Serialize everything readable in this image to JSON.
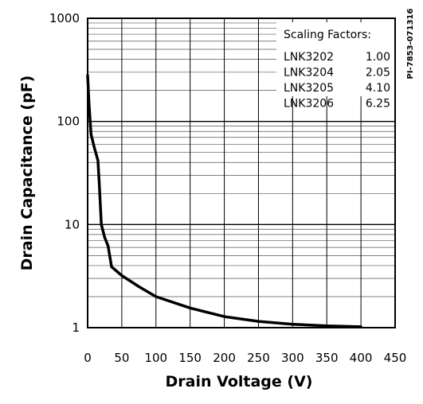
{
  "chart_data": {
    "type": "line",
    "title": "",
    "xlabel": "Drain Voltage (V)",
    "ylabel": "Drain Capacitance (pF)",
    "xlim": [
      0,
      450
    ],
    "ylim": [
      1,
      1000
    ],
    "yscale": "log",
    "x_ticks": [
      "0",
      "50",
      "100",
      "150",
      "200",
      "250",
      "300",
      "350",
      "400",
      "450"
    ],
    "y_ticks": [
      "1",
      "10",
      "100",
      "1000"
    ],
    "grid": true,
    "figure_id": "PI-7853-071316",
    "scaling_factors": {
      "title": "Scaling Factors:",
      "rows": [
        {
          "part": "LNK3202",
          "factor": "1.00"
        },
        {
          "part": "LNK3204",
          "factor": "2.05"
        },
        {
          "part": "LNK3205",
          "factor": "4.10"
        },
        {
          "part": "LNK3206",
          "factor": "6.25"
        }
      ]
    },
    "series": [
      {
        "color": "#000000",
        "points": [
          [
            0,
            280
          ],
          [
            2,
            150
          ],
          [
            5,
            75
          ],
          [
            10,
            55
          ],
          [
            15,
            42
          ],
          [
            17,
            25
          ],
          [
            20,
            10
          ],
          [
            25,
            7.5
          ],
          [
            30,
            6.2
          ],
          [
            35,
            3.9
          ],
          [
            50,
            3.2
          ],
          [
            75,
            2.5
          ],
          [
            100,
            2.0
          ],
          [
            150,
            1.55
          ],
          [
            200,
            1.28
          ],
          [
            250,
            1.15
          ],
          [
            300,
            1.08
          ],
          [
            350,
            1.04
          ],
          [
            400,
            1.02
          ]
        ]
      }
    ]
  }
}
